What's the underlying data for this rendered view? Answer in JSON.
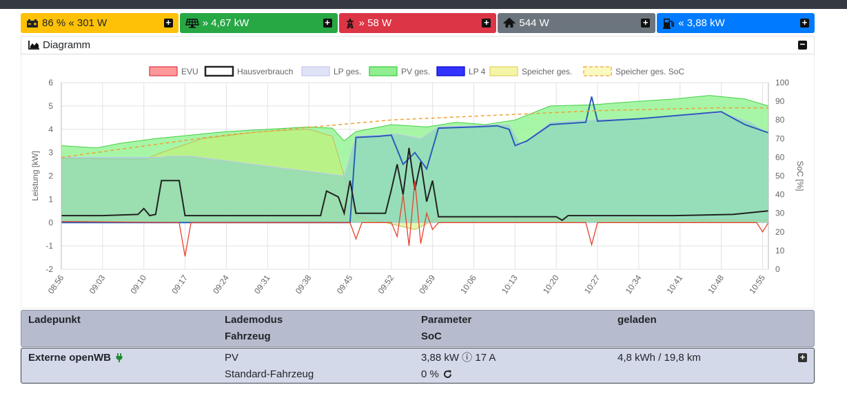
{
  "tiles": [
    {
      "id": "battery",
      "text": "86 % « 301 W",
      "icon": "battery-icon",
      "color": "#ffc107"
    },
    {
      "id": "pv",
      "text": "» 4,67 kW",
      "icon": "solar-panel-icon",
      "color": "#28a745"
    },
    {
      "id": "grid",
      "text": "» 58 W",
      "icon": "power-tower-icon",
      "color": "#dc3545"
    },
    {
      "id": "house",
      "text": "544 W",
      "icon": "house-icon",
      "color": "#6c757d"
    },
    {
      "id": "charge",
      "text": "« 3,88 kW",
      "icon": "charging-station-icon",
      "color": "#007bff"
    }
  ],
  "diagram": {
    "title": "Diagramm",
    "icon": "area-chart-icon"
  },
  "chart_data": {
    "type": "area",
    "legend": [
      {
        "name": "EVU",
        "fill": "#ff9999",
        "stroke": "#dc3545"
      },
      {
        "name": "Hausverbrauch",
        "fill": "#ffffff",
        "stroke": "#222222"
      },
      {
        "name": "LP ges.",
        "fill": "#e0e2f6",
        "stroke": "#c4c8ee"
      },
      {
        "name": "PV ges.",
        "fill": "#90ee90",
        "stroke": "#33cc33"
      },
      {
        "name": "LP 4",
        "fill": "#3333ff",
        "stroke": "#0000cc"
      },
      {
        "name": "Speicher ges.",
        "fill": "#f5f5a8",
        "stroke": "#e0d060"
      },
      {
        "name": "Speicher ges. SoC",
        "fill": "#fafac0",
        "stroke": "#f0a030",
        "dashed": true
      }
    ],
    "ylabel": "Leistung [kW]",
    "y2label": "SoC [%]",
    "ylim": [
      -2,
      6
    ],
    "y2lim": [
      0,
      100
    ],
    "yticks": [
      -2,
      -1,
      0,
      1,
      2,
      3,
      4,
      5,
      6
    ],
    "y2ticks": [
      0,
      10,
      20,
      30,
      40,
      50,
      60,
      70,
      80,
      90,
      100
    ],
    "xlim": [
      "08:56",
      "10:56"
    ],
    "xticks": [
      "08:56",
      "09:03",
      "09:10",
      "09:17",
      "09:24",
      "09:31",
      "09:38",
      "09:45",
      "09:52",
      "09:59",
      "10:06",
      "10:13",
      "10:20",
      "10:27",
      "10:34",
      "10:41",
      "10:48",
      "10:55"
    ],
    "series": [
      {
        "name": "PV ges.",
        "points": [
          [
            "08:56",
            3.3
          ],
          [
            "09:02",
            3.2
          ],
          [
            "09:06",
            3.4
          ],
          [
            "09:12",
            3.6
          ],
          [
            "09:16",
            3.7
          ],
          [
            "09:24",
            3.9
          ],
          [
            "09:31",
            4.0
          ],
          [
            "09:38",
            4.1
          ],
          [
            "09:42",
            4.05
          ],
          [
            "09:44",
            3.5
          ],
          [
            "09:46",
            3.9
          ],
          [
            "09:52",
            4.2
          ],
          [
            "09:58",
            4.1
          ],
          [
            "10:03",
            4.3
          ],
          [
            "10:08",
            4.2
          ],
          [
            "10:13",
            4.4
          ],
          [
            "10:19",
            5.0
          ],
          [
            "10:26",
            5.05
          ],
          [
            "10:34",
            5.2
          ],
          [
            "10:40",
            5.3
          ],
          [
            "10:46",
            5.45
          ],
          [
            "10:52",
            5.3
          ],
          [
            "10:56",
            5.0
          ]
        ]
      },
      {
        "name": "LP ges.",
        "points": [
          [
            "08:56",
            2.8
          ],
          [
            "09:13",
            2.8
          ],
          [
            "09:14",
            2.85
          ],
          [
            "09:18",
            2.85
          ],
          [
            "09:44",
            2.0
          ],
          [
            "09:46",
            3.7
          ],
          [
            "09:50",
            3.75
          ],
          [
            "09:53",
            3.8
          ],
          [
            "09:57",
            3.6
          ],
          [
            "10:00",
            4.1
          ],
          [
            "10:12",
            4.2
          ],
          [
            "10:14",
            3.3
          ],
          [
            "10:19",
            4.3
          ],
          [
            "10:26",
            4.4
          ],
          [
            "10:34",
            4.45
          ],
          [
            "10:48",
            4.7
          ],
          [
            "10:53",
            4.3
          ],
          [
            "10:56",
            3.8
          ]
        ]
      },
      {
        "name": "LP 4",
        "points": [
          [
            "08:56",
            0
          ],
          [
            "09:45",
            0
          ],
          [
            "09:46",
            3.65
          ],
          [
            "09:50",
            3.7
          ],
          [
            "09:52",
            3.75
          ],
          [
            "09:54",
            2.5
          ],
          [
            "09:56",
            3.0
          ],
          [
            "09:58",
            2.3
          ],
          [
            "10:00",
            4.05
          ],
          [
            "10:06",
            4.1
          ],
          [
            "10:10",
            4.15
          ],
          [
            "10:12",
            4.0
          ],
          [
            "10:13",
            3.3
          ],
          [
            "10:15",
            3.5
          ],
          [
            "10:19",
            4.2
          ],
          [
            "10:25",
            4.3
          ],
          [
            "10:26",
            5.4
          ],
          [
            "10:27",
            4.35
          ],
          [
            "10:34",
            4.45
          ],
          [
            "10:41",
            4.6
          ],
          [
            "10:48",
            4.75
          ],
          [
            "10:52",
            4.2
          ],
          [
            "10:56",
            3.85
          ]
        ]
      },
      {
        "name": "Speicher ges.",
        "points": [
          [
            "08:56",
            2.75
          ],
          [
            "09:10",
            2.7
          ],
          [
            "09:13",
            3.0
          ],
          [
            "09:20",
            3.6
          ],
          [
            "09:30",
            3.9
          ],
          [
            "09:38",
            4.0
          ],
          [
            "09:42",
            3.7
          ],
          [
            "09:44",
            2.0
          ],
          [
            "09:46",
            0.3
          ],
          [
            "09:56",
            -0.3
          ],
          [
            "10:00",
            0.2
          ],
          [
            "10:30",
            0.15
          ],
          [
            "10:56",
            0.1
          ]
        ]
      },
      {
        "name": "Hausverbrauch",
        "points": [
          [
            "08:56",
            0.3
          ],
          [
            "09:03",
            0.3
          ],
          [
            "09:09",
            0.35
          ],
          [
            "09:10",
            0.6
          ],
          [
            "09:11",
            0.3
          ],
          [
            "09:12",
            0.35
          ],
          [
            "09:13",
            1.8
          ],
          [
            "09:16",
            1.8
          ],
          [
            "09:17",
            0.3
          ],
          [
            "09:40",
            0.3
          ],
          [
            "09:41",
            1.35
          ],
          [
            "09:43",
            1.1
          ],
          [
            "09:44",
            0.4
          ],
          [
            "09:45",
            1.8
          ],
          [
            "09:46",
            0.4
          ],
          [
            "09:51",
            0.4
          ],
          [
            "09:52",
            1.4
          ],
          [
            "09:53",
            2.5
          ],
          [
            "09:54",
            1.2
          ],
          [
            "09:55",
            3.2
          ],
          [
            "09:56",
            1.4
          ],
          [
            "09:57",
            2.6
          ],
          [
            "09:58",
            0.9
          ],
          [
            "09:59",
            1.8
          ],
          [
            "10:00",
            0.25
          ],
          [
            "10:20",
            0.25
          ],
          [
            "10:21",
            0.1
          ],
          [
            "10:22",
            0.3
          ],
          [
            "10:40",
            0.3
          ],
          [
            "10:50",
            0.35
          ],
          [
            "10:56",
            0.5
          ]
        ]
      },
      {
        "name": "EVU",
        "points": [
          [
            "08:56",
            0.05
          ],
          [
            "09:16",
            0.0
          ],
          [
            "09:17",
            -1.45
          ],
          [
            "09:18",
            0.0
          ],
          [
            "09:45",
            0.0
          ],
          [
            "09:46",
            -0.7
          ],
          [
            "09:47",
            0.0
          ],
          [
            "09:52",
            0.0
          ],
          [
            "09:53",
            -0.6
          ],
          [
            "09:54",
            1.2
          ],
          [
            "09:55",
            -1.0
          ],
          [
            "09:56",
            1.8
          ],
          [
            "09:57",
            -0.9
          ],
          [
            "09:58",
            0.4
          ],
          [
            "09:59",
            -0.3
          ],
          [
            "10:00",
            0.0
          ],
          [
            "10:25",
            0.0
          ],
          [
            "10:26",
            -0.95
          ],
          [
            "10:27",
            0.0
          ],
          [
            "10:54",
            0.0
          ],
          [
            "10:55",
            -0.4
          ],
          [
            "10:56",
            0.0
          ]
        ]
      },
      {
        "name": "Speicher ges. SoC",
        "axis": "y2",
        "points": [
          [
            "08:56",
            60
          ],
          [
            "09:03",
            63
          ],
          [
            "09:10",
            66
          ],
          [
            "09:17",
            69
          ],
          [
            "09:24",
            72
          ],
          [
            "09:31",
            74
          ],
          [
            "09:38",
            76
          ],
          [
            "09:45",
            78
          ],
          [
            "09:52",
            80
          ],
          [
            "09:59",
            81
          ],
          [
            "10:06",
            82
          ],
          [
            "10:13",
            83
          ],
          [
            "10:20",
            84
          ],
          [
            "10:27",
            85
          ],
          [
            "10:34",
            85.5
          ],
          [
            "10:41",
            86
          ],
          [
            "10:48",
            86.5
          ],
          [
            "10:56",
            86.5
          ]
        ]
      }
    ],
    "grid": true,
    "legend_position": "top"
  },
  "table": {
    "headers": [
      [
        "Ladepunkt",
        ""
      ],
      [
        "Lademodus",
        "Fahrzeug"
      ],
      [
        "Parameter",
        "SoC"
      ],
      [
        "geladen",
        ""
      ]
    ],
    "rows": [
      {
        "name": "Externe openWB",
        "mode": "PV",
        "vehicle": "Standard-Fahrzeug",
        "power": "3,88 kW ⓘ 17 A",
        "soc": "0 %",
        "charged": "4,8 kWh / 19,8 km"
      }
    ]
  }
}
